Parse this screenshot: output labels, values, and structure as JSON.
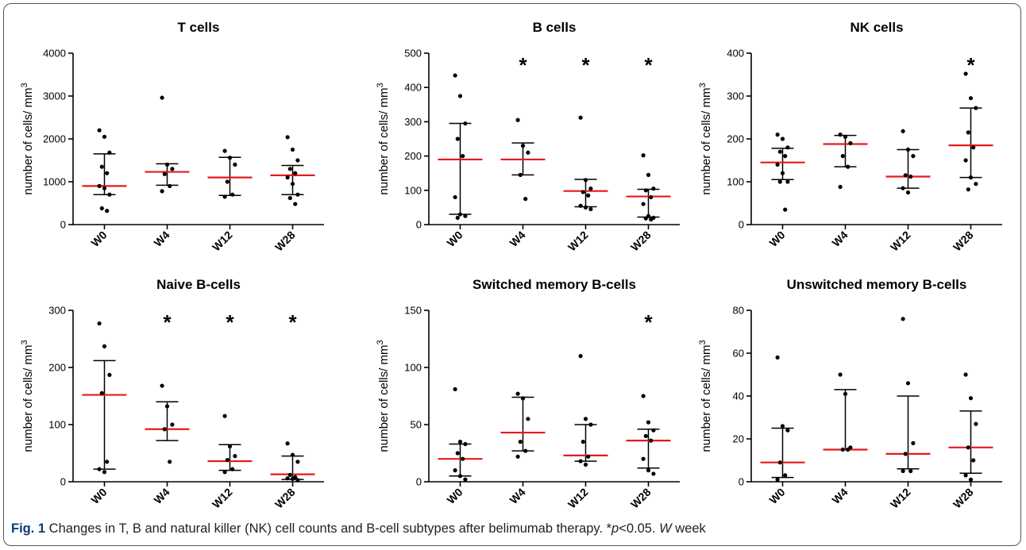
{
  "caption": {
    "label": "Fig. 1",
    "text": " Changes in T, B and natural killer (NK) cell counts and B-cell subtypes after belimumab therapy. *",
    "p": "p",
    "text2": "<0.05. ",
    "w": "W",
    "text3": " week"
  },
  "colors": {
    "median": "#e8191a",
    "points": "#000000",
    "axis": "#000000"
  },
  "chart_data": [
    {
      "type": "scatter",
      "title": "T cells",
      "ylabel": "number of cells/ mm",
      "ylabel_sup": "3",
      "ylim": [
        0,
        4000
      ],
      "yticks": [
        0,
        1000,
        2000,
        3000,
        4000
      ],
      "categories": [
        "W0",
        "W4",
        "W12",
        "W28"
      ],
      "groups": [
        {
          "points": [
            2200,
            2050,
            1680,
            1350,
            1200,
            900,
            850,
            700,
            380,
            320
          ],
          "median": 900,
          "q1": 700,
          "q3": 1650,
          "sig": false
        },
        {
          "points": [
            2960,
            1400,
            1300,
            1180,
            900,
            780
          ],
          "median": 1230,
          "q1": 920,
          "q3": 1420,
          "sig": false
        },
        {
          "points": [
            1720,
            1560,
            1400,
            1000,
            700,
            650
          ],
          "median": 1100,
          "q1": 680,
          "q3": 1570,
          "sig": false
        },
        {
          "points": [
            2040,
            1750,
            1500,
            1300,
            1200,
            1100,
            950,
            700,
            620,
            480
          ],
          "median": 1150,
          "q1": 700,
          "q3": 1380,
          "sig": false
        }
      ]
    },
    {
      "type": "scatter",
      "title": "B cells",
      "ylabel": "number of cells/ mm",
      "ylabel_sup": "3",
      "ylim": [
        0,
        500
      ],
      "yticks": [
        0,
        100,
        200,
        300,
        400,
        500
      ],
      "categories": [
        "W0",
        "W4",
        "W12",
        "W28"
      ],
      "groups": [
        {
          "points": [
            435,
            375,
            295,
            250,
            200,
            80,
            30,
            25,
            20
          ],
          "median": 190,
          "q1": 30,
          "q3": 295,
          "sig": false
        },
        {
          "points": [
            305,
            230,
            210,
            145,
            75
          ],
          "median": 190,
          "q1": 145,
          "q3": 238,
          "sig": true
        },
        {
          "points": [
            312,
            130,
            105,
            95,
            85,
            55,
            50,
            45
          ],
          "median": 98,
          "q1": 52,
          "q3": 132,
          "sig": true
        },
        {
          "points": [
            202,
            145,
            105,
            100,
            80,
            60,
            25,
            20,
            18,
            15
          ],
          "median": 82,
          "q1": 22,
          "q3": 103,
          "sig": true
        }
      ]
    },
    {
      "type": "scatter",
      "title": "NK cells",
      "ylabel": "number of cells/ mm",
      "ylabel_sup": "3",
      "ylim": [
        0,
        400
      ],
      "yticks": [
        0,
        100,
        200,
        300,
        400
      ],
      "categories": [
        "W0",
        "W4",
        "W12",
        "W28"
      ],
      "groups": [
        {
          "points": [
            210,
            200,
            180,
            170,
            160,
            140,
            120,
            100,
            100,
            35
          ],
          "median": 145,
          "q1": 105,
          "q3": 178,
          "sig": false
        },
        {
          "points": [
            210,
            205,
            190,
            160,
            135,
            88
          ],
          "median": 188,
          "q1": 135,
          "q3": 208,
          "sig": false
        },
        {
          "points": [
            218,
            175,
            160,
            115,
            112,
            85,
            75
          ],
          "median": 112,
          "q1": 85,
          "q3": 175,
          "sig": false
        },
        {
          "points": [
            352,
            295,
            272,
            215,
            180,
            150,
            110,
            95,
            82
          ],
          "median": 185,
          "q1": 110,
          "q3": 272,
          "sig": true
        }
      ]
    },
    {
      "type": "scatter",
      "title": "Naive B-cells",
      "ylabel": "number of cells/ mm",
      "ylabel_sup": "3",
      "ylim": [
        0,
        300
      ],
      "yticks": [
        0,
        100,
        200,
        300
      ],
      "categories": [
        "W0",
        "W4",
        "W12",
        "W28"
      ],
      "groups": [
        {
          "points": [
            277,
            237,
            187,
            155,
            35,
            22,
            17
          ],
          "median": 152,
          "q1": 22,
          "q3": 212,
          "sig": false
        },
        {
          "points": [
            168,
            132,
            100,
            92,
            35
          ],
          "median": 92,
          "q1": 72,
          "q3": 140,
          "sig": true
        },
        {
          "points": [
            115,
            62,
            45,
            38,
            22,
            17
          ],
          "median": 36,
          "q1": 20,
          "q3": 65,
          "sig": true
        },
        {
          "points": [
            67,
            47,
            35,
            12,
            8,
            6,
            5,
            3
          ],
          "median": 13,
          "q1": 4,
          "q3": 45,
          "sig": true
        }
      ]
    },
    {
      "type": "scatter",
      "title": "Switched memory B-cells",
      "ylabel": "number of cells/ mm",
      "ylabel_sup": "3",
      "ylim": [
        0,
        150
      ],
      "yticks": [
        0,
        50,
        100,
        150
      ],
      "categories": [
        "W0",
        "W4",
        "W12",
        "W28"
      ],
      "groups": [
        {
          "points": [
            81,
            35,
            33,
            25,
            20,
            10,
            5,
            2
          ],
          "median": 20,
          "q1": 5,
          "q3": 33,
          "sig": false
        },
        {
          "points": [
            77,
            73,
            55,
            35,
            27,
            22
          ],
          "median": 43,
          "q1": 27,
          "q3": 74,
          "sig": false
        },
        {
          "points": [
            110,
            55,
            50,
            35,
            22,
            18,
            15
          ],
          "median": 23,
          "q1": 18,
          "q3": 50,
          "sig": false
        },
        {
          "points": [
            75,
            52,
            45,
            40,
            36,
            20,
            10,
            7
          ],
          "median": 36,
          "q1": 12,
          "q3": 46,
          "sig": true
        }
      ]
    },
    {
      "type": "scatter",
      "title": "Unswitched memory B-cells",
      "ylabel": "number of cells/ mm",
      "ylabel_sup": "3",
      "ylim": [
        0,
        80
      ],
      "yticks": [
        0,
        20,
        40,
        60,
        80
      ],
      "categories": [
        "W0",
        "W4",
        "W12",
        "W28"
      ],
      "groups": [
        {
          "points": [
            58,
            26,
            24,
            9,
            3,
            1
          ],
          "median": 9,
          "q1": 2,
          "q3": 25,
          "sig": false
        },
        {
          "points": [
            50,
            41,
            16,
            15,
            15
          ],
          "median": 15,
          "q1": 15,
          "q3": 43,
          "sig": false
        },
        {
          "points": [
            76,
            46,
            18,
            13,
            5,
            5
          ],
          "median": 13,
          "q1": 6,
          "q3": 40,
          "sig": false
        },
        {
          "points": [
            50,
            39,
            27,
            16,
            10,
            3,
            1
          ],
          "median": 16,
          "q1": 4,
          "q3": 33,
          "sig": false
        }
      ]
    }
  ]
}
